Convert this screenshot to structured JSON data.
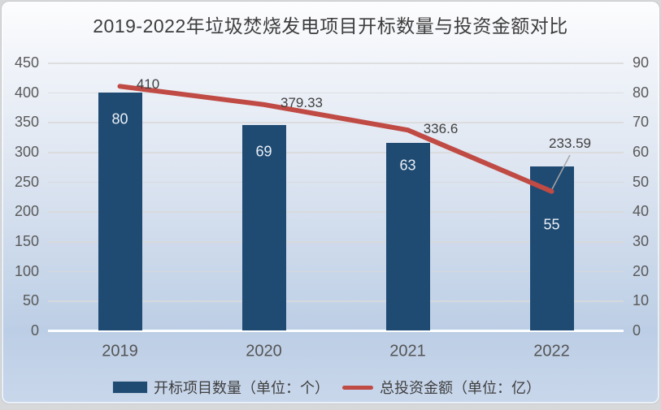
{
  "chart_data": {
    "type": "bar+line",
    "title": "2019-2022年垃圾焚烧发电项目开标数量与投资金额对比",
    "categories": [
      "2019",
      "2020",
      "2021",
      "2022"
    ],
    "series": [
      {
        "name": "开标项目数量（单位：个）",
        "type": "bar",
        "axis": "right",
        "values": [
          80,
          69,
          63,
          55
        ],
        "labels": [
          "80",
          "69",
          "63",
          "55"
        ],
        "color": "#1f4b73"
      },
      {
        "name": "总投资金额（单位：亿）",
        "type": "line",
        "axis": "left",
        "values": [
          410,
          379.33,
          336.6,
          233.59
        ],
        "labels": [
          "410",
          "379.33",
          "336.6",
          "233.59"
        ],
        "color": "#c04a44"
      }
    ],
    "left_axis": {
      "min": 0,
      "max": 450,
      "step": 50,
      "ticks": [
        450,
        400,
        350,
        300,
        250,
        200,
        150,
        100,
        50,
        0
      ]
    },
    "right_axis": {
      "min": 0,
      "max": 90,
      "step": 10,
      "ticks": [
        90,
        80,
        70,
        60,
        50,
        40,
        30,
        20,
        10,
        0
      ]
    },
    "grid": true,
    "legend_position": "bottom",
    "colors": {
      "bar": "#1f4b73",
      "line": "#c04a44",
      "leader_line": "#a6a6a6",
      "gridline": "#d9d9d9",
      "axis_line": "#ffffff",
      "tick_text": "#595959",
      "data_label_text": "#3f3f3f",
      "bar_label_text": "#eaeff5",
      "title_text": "#3d3d3d",
      "bg_top": "#fdfdfe",
      "bg_bottom": "#bccee5"
    }
  }
}
